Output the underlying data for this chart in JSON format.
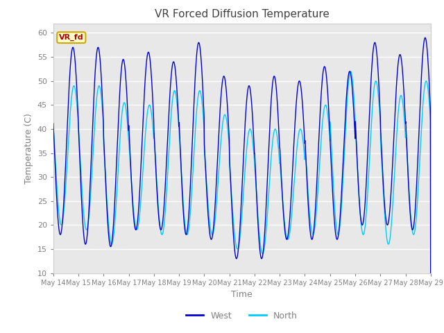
{
  "title": "VR Forced Diffusion Temperature",
  "xlabel": "Time",
  "ylabel": "Temperature (C)",
  "ylim": [
    10,
    62
  ],
  "days": 15,
  "background_color": "#e8e8e8",
  "grid_color": "white",
  "west_color": "#0000cc",
  "north_color": "#00ccff",
  "label_color": "#808080",
  "annotation_text": "VR_fd",
  "annotation_bg": "#ffffcc",
  "annotation_border": "#ccaa00",
  "annotation_text_color": "#aa0000",
  "xtick_labels": [
    "May 14",
    "May 15",
    "May 16",
    "May 17",
    "May 18",
    "May 19",
    "May 20",
    "May 21",
    "May 22",
    "May 23",
    "May 24",
    "May 25",
    "May 26",
    "May 27",
    "May 28",
    "May 29"
  ],
  "ytick_values": [
    10,
    15,
    20,
    25,
    30,
    35,
    40,
    45,
    50,
    55,
    60
  ],
  "legend_items": [
    "West",
    "North"
  ],
  "west_peaks": [
    57,
    57,
    54.5,
    56,
    54,
    58,
    51,
    49,
    51,
    50,
    53,
    52,
    58,
    55.5,
    59
  ],
  "west_mins": [
    18,
    16,
    15.5,
    19,
    19,
    18,
    17,
    13,
    13,
    17,
    17,
    17,
    20,
    20,
    19
  ],
  "north_peaks": [
    49,
    49,
    45.5,
    45,
    48,
    48,
    43,
    40,
    40,
    40,
    45,
    52,
    50,
    47,
    50
  ],
  "north_mins": [
    20,
    19,
    16,
    19,
    18,
    18,
    18,
    15,
    14,
    17,
    18,
    18,
    18,
    16,
    18
  ],
  "west_phase": 0.28,
  "north_phase": 0.32
}
